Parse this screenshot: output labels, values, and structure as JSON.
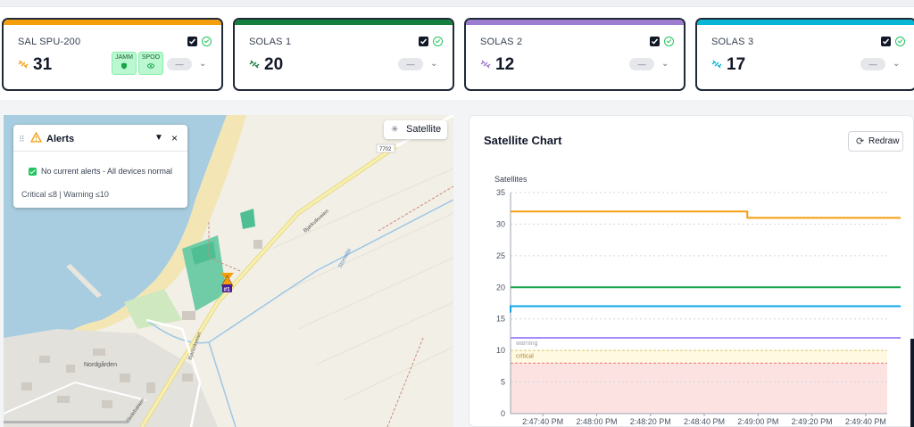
{
  "cards": [
    {
      "name": "SAL SPU-200",
      "value": "31",
      "color": "#f59e0b",
      "icon_color": "#f59e0b",
      "badges": [
        {
          "label": "JAMM",
          "icon": "shield-icon"
        },
        {
          "label": "SPOO",
          "icon": "eye-icon"
        }
      ],
      "dash": "—"
    },
    {
      "name": "SOLAS 1",
      "value": "20",
      "color": "#15803d",
      "icon_color": "#15803d",
      "badges": [],
      "dash": "—"
    },
    {
      "name": "SOLAS 2",
      "value": "12",
      "color": "#9b7ccf",
      "icon_color": "#9b7ccf",
      "badges": [],
      "dash": "—"
    },
    {
      "name": "SOLAS 3",
      "value": "17",
      "color": "#06b6d4",
      "icon_color": "#06b6d4",
      "badges": [],
      "dash": "—"
    }
  ],
  "alerts": {
    "title": "Alerts",
    "message": "No current alerts - All devices normal",
    "thresholds": "Critical ≤8 | Warning ≤10"
  },
  "map": {
    "satellite_label": "Satellite",
    "labels": {
      "road": "Bjørkvikveien",
      "road2": "Bjørkvikveien",
      "road3": "Skolebakken",
      "stream": "Storvelta",
      "place": "Nordgården",
      "route": "7702",
      "marker": "#1"
    }
  },
  "panel": {
    "title": "Satellite Chart",
    "redraw_label": "Redraw"
  },
  "chart_data": {
    "type": "line",
    "ylabel": "Satellites",
    "ylim": [
      0,
      35
    ],
    "yticks": [
      0,
      5,
      10,
      15,
      20,
      25,
      30,
      35
    ],
    "x_ticks": [
      "2:47:40 PM",
      "2:48:00 PM",
      "2:48:20 PM",
      "2:48:40 PM",
      "2:49:00 PM",
      "2:49:20 PM",
      "2:49:40 PM"
    ],
    "x_range_seconds": [
      0,
      140
    ],
    "warning_threshold": 10,
    "critical_threshold": 8,
    "threshold_labels": {
      "warning": "warning",
      "critical": "critical"
    },
    "series": [
      {
        "name": "SAL SPU-200",
        "color": "#f59e0b",
        "points": [
          [
            0,
            32
          ],
          [
            88,
            32
          ],
          [
            88,
            31
          ],
          [
            145,
            31
          ]
        ]
      },
      {
        "name": "SOLAS 1",
        "color": "#16a34a",
        "points": [
          [
            0,
            20
          ],
          [
            145,
            20
          ]
        ]
      },
      {
        "name": "SOLAS 3",
        "color": "#0ea5e9",
        "points": [
          [
            0,
            16
          ],
          [
            0,
            17
          ],
          [
            145,
            17
          ]
        ]
      },
      {
        "name": "SOLAS 2",
        "color": "#a78bfa",
        "points": [
          [
            0,
            12
          ],
          [
            145,
            12
          ]
        ]
      }
    ]
  }
}
